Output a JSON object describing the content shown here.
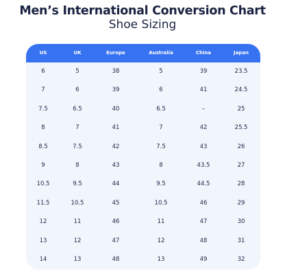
{
  "header": {
    "title": "Men’s International Conversion Chart",
    "subtitle": "Shoe Sizing"
  },
  "table": {
    "columns": [
      "US",
      "UK",
      "Europe",
      "Australia",
      "China",
      "Japan"
    ],
    "rows": [
      [
        "6",
        "5",
        "38",
        "5",
        "39",
        "23.5"
      ],
      [
        "7",
        "6",
        "39",
        "6",
        "41",
        "24.5"
      ],
      [
        "7.5",
        "6.5",
        "40",
        "6.5",
        "–",
        "25"
      ],
      [
        "8",
        "7",
        "41",
        "7",
        "42",
        "25.5"
      ],
      [
        "8.5",
        "7.5",
        "42",
        "7.5",
        "43",
        "26"
      ],
      [
        "9",
        "8",
        "43",
        "8",
        "43.5",
        "27"
      ],
      [
        "10.5",
        "9.5",
        "44",
        "9.5",
        "44.5",
        "28"
      ],
      [
        "11.5",
        "10.5",
        "45",
        "10.5",
        "46",
        "29"
      ],
      [
        "12",
        "11",
        "46",
        "11",
        "47",
        "30"
      ],
      [
        "13",
        "12",
        "47",
        "12",
        "48",
        "31"
      ],
      [
        "14",
        "13",
        "48",
        "13",
        "49",
        "32"
      ]
    ]
  },
  "colors": {
    "title_text": "#1b2342",
    "header_bg": "#3772f0",
    "header_text": "#ffffff",
    "body_bg": "#f1f6fd",
    "cell_text": "#1b2342"
  }
}
